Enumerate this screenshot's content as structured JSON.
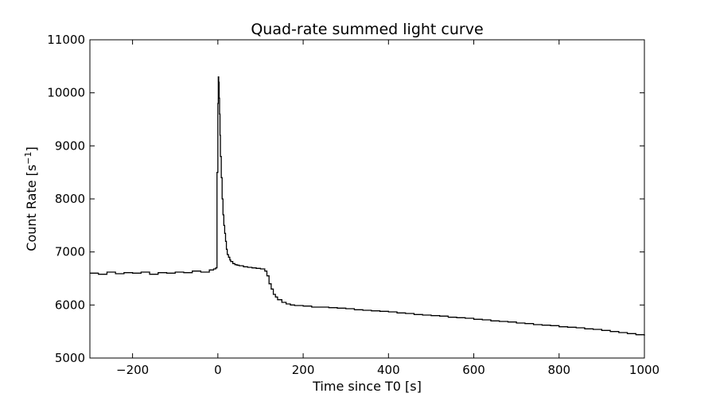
{
  "chart_data": {
    "type": "line",
    "title": "Quad-rate summed light curve",
    "xlabel": "Time since T0 [s]",
    "ylabel": "Count Rate [s",
    "ylabel_sup": "−1",
    "ylabel_end": "]",
    "xlim": [
      -300,
      1000
    ],
    "ylim": [
      5000,
      11000
    ],
    "xticks": [
      -200,
      0,
      200,
      400,
      600,
      800,
      1000
    ],
    "xtick_labels": [
      "−200",
      "0",
      "200",
      "400",
      "600",
      "800",
      "1000"
    ],
    "yticks": [
      5000,
      6000,
      7000,
      8000,
      9000,
      10000,
      11000
    ],
    "ytick_labels": [
      "5000",
      "6000",
      "7000",
      "8000",
      "9000",
      "10000",
      "11000"
    ],
    "grid": false,
    "line_color": "#000000",
    "series": [
      {
        "style": "steps",
        "x": [
          -300,
          -280,
          -260,
          -240,
          -220,
          -200,
          -180,
          -160,
          -140,
          -120,
          -100,
          -80,
          -60,
          -40,
          -20,
          -10,
          -5,
          -2,
          0,
          1,
          2,
          3,
          4,
          5,
          6,
          8,
          10,
          12,
          14,
          16,
          18,
          20,
          22,
          25,
          28,
          30,
          35,
          40,
          45,
          50,
          60,
          70,
          80,
          90,
          100,
          110,
          115,
          120,
          125,
          130,
          135,
          140,
          150,
          160,
          170,
          180,
          200,
          220,
          240,
          260,
          280,
          300,
          320,
          340,
          360,
          380,
          400,
          420,
          440,
          460,
          480,
          500,
          520,
          540,
          560,
          580,
          600,
          620,
          640,
          660,
          680,
          700,
          720,
          740,
          760,
          780,
          800,
          820,
          840,
          860,
          880,
          900,
          920,
          940,
          960,
          980,
          1000
        ],
        "y": [
          6600,
          6580,
          6620,
          6590,
          6610,
          6600,
          6620,
          6580,
          6610,
          6600,
          6620,
          6610,
          6640,
          6620,
          6660,
          6680,
          6700,
          8500,
          9800,
          10300,
          10200,
          9900,
          9600,
          9200,
          8800,
          8400,
          8000,
          7700,
          7500,
          7350,
          7200,
          7050,
          6950,
          6900,
          6850,
          6820,
          6780,
          6760,
          6750,
          6740,
          6720,
          6710,
          6700,
          6690,
          6680,
          6640,
          6550,
          6400,
          6300,
          6200,
          6150,
          6100,
          6050,
          6020,
          6000,
          5990,
          5980,
          5960,
          5960,
          5950,
          5940,
          5930,
          5910,
          5900,
          5890,
          5880,
          5870,
          5850,
          5840,
          5820,
          5810,
          5800,
          5790,
          5770,
          5760,
          5750,
          5730,
          5720,
          5700,
          5690,
          5680,
          5660,
          5650,
          5630,
          5620,
          5610,
          5590,
          5580,
          5570,
          5550,
          5540,
          5520,
          5500,
          5480,
          5460,
          5440,
          5420
        ]
      }
    ]
  }
}
